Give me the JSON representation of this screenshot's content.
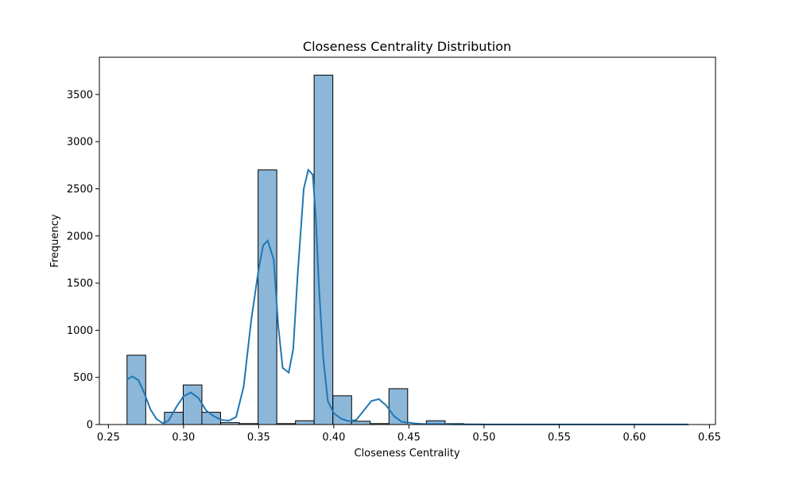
{
  "chart_data": {
    "type": "bar",
    "title": "Closeness Centrality Distribution",
    "xlabel": "Closeness Centrality",
    "ylabel": "Frequency",
    "xlim": [
      0.244,
      0.654
    ],
    "ylim": [
      0,
      3895
    ],
    "x_ticks": [
      0.25,
      0.3,
      0.35,
      0.4,
      0.45,
      0.5,
      0.55,
      0.6,
      0.65
    ],
    "x_tick_labels": [
      "0.25",
      "0.30",
      "0.35",
      "0.40",
      "0.45",
      "0.50",
      "0.55",
      "0.60",
      "0.65"
    ],
    "y_ticks": [
      0,
      500,
      1000,
      1500,
      2000,
      2500,
      3000,
      3500
    ],
    "y_tick_labels": [
      "0",
      "500",
      "1000",
      "1500",
      "2000",
      "2500",
      "3000",
      "3500"
    ],
    "grid": false,
    "colors": {
      "bar_fill": "#8cb7d9",
      "bar_edge": "#000000",
      "kde": "#1f77b4"
    },
    "bins": {
      "x_start": [
        0.2624,
        0.2749,
        0.2873,
        0.2998,
        0.3122,
        0.3247,
        0.3371,
        0.3496,
        0.362,
        0.3745,
        0.3869,
        0.3994,
        0.4118,
        0.4243,
        0.4367,
        0.4492,
        0.4616,
        0.4741,
        0.4865,
        0.499,
        0.5114,
        0.5239,
        0.5363,
        0.5488,
        0.5612,
        0.5737,
        0.5861,
        0.5986,
        0.611,
        0.6235
      ],
      "width": 0.01245,
      "counts": [
        735,
        0,
        130,
        420,
        130,
        20,
        10,
        2700,
        10,
        40,
        3705,
        305,
        35,
        10,
        380,
        0,
        40,
        10,
        5,
        2,
        1,
        1,
        1,
        1,
        1,
        0,
        0,
        0,
        0,
        1
      ]
    },
    "kde": {
      "x": [
        0.2624,
        0.266,
        0.27,
        0.274,
        0.278,
        0.282,
        0.286,
        0.29,
        0.295,
        0.3,
        0.305,
        0.31,
        0.315,
        0.32,
        0.325,
        0.33,
        0.335,
        0.34,
        0.345,
        0.35,
        0.353,
        0.356,
        0.36,
        0.363,
        0.366,
        0.37,
        0.373,
        0.376,
        0.38,
        0.383,
        0.386,
        0.388,
        0.39,
        0.393,
        0.396,
        0.4,
        0.405,
        0.41,
        0.415,
        0.42,
        0.425,
        0.43,
        0.435,
        0.44,
        0.445,
        0.45,
        0.455,
        0.46,
        0.47,
        0.48,
        0.5,
        0.55,
        0.6,
        0.636
      ],
      "y": [
        480,
        510,
        470,
        330,
        160,
        60,
        15,
        40,
        180,
        300,
        340,
        280,
        150,
        90,
        50,
        40,
        80,
        400,
        1100,
        1650,
        1900,
        1950,
        1750,
        1050,
        600,
        550,
        800,
        1600,
        2500,
        2700,
        2650,
        2200,
        1500,
        700,
        250,
        120,
        60,
        35,
        50,
        150,
        250,
        270,
        200,
        90,
        30,
        20,
        10,
        5,
        5,
        2,
        1,
        1,
        1,
        1
      ]
    }
  }
}
